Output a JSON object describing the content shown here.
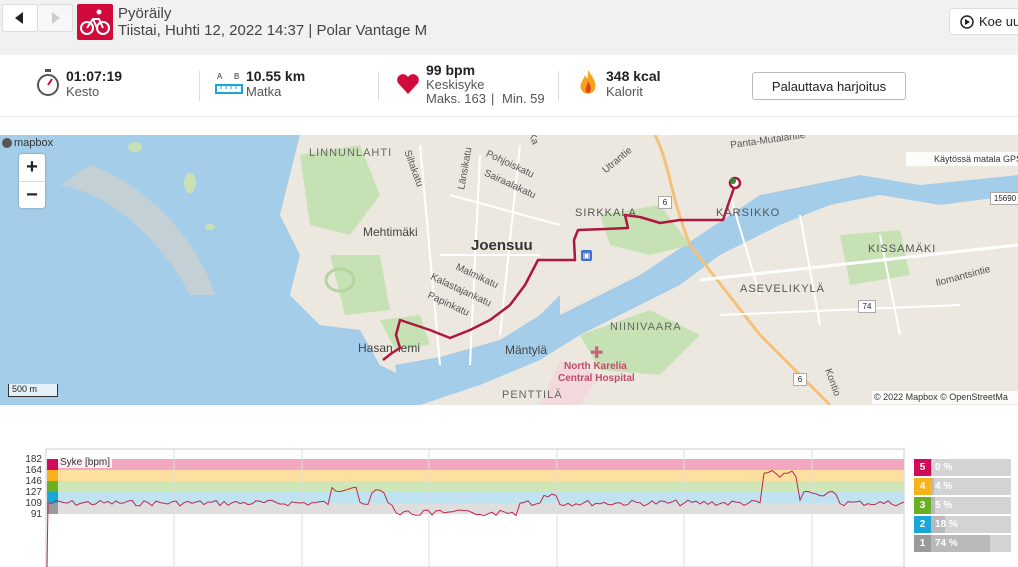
{
  "header": {
    "sport": "Pyöräily",
    "subtitle": "Tiistai, Huhti 12, 2022 14:37 | Polar Vantage M",
    "try_label": "Koe uu"
  },
  "stats": {
    "duration": {
      "value": "01:07:19",
      "label": "Kesto"
    },
    "distance": {
      "value": "10.55 km",
      "label": "Matka"
    },
    "heart_rate": {
      "value": "99 bpm",
      "label": "Keskisyke",
      "max": "Maks. 163",
      "sep": "|",
      "min": "Min. 59"
    },
    "calories": {
      "value": "348 kcal",
      "label": "Kalorit"
    },
    "recovery_button": "Palauttava harjoitus"
  },
  "map": {
    "brand": "mapbox",
    "scale": "500 m",
    "gps_notice": "Käytössä matala GPS",
    "attribution": "© 2022 Mapbox © OpenStreetMa",
    "labels": {
      "linnunlahti": "LINNUNLAHTI",
      "siltakatu": "Siltakatu",
      "lansikatu": "Länsikatu",
      "pohjoiskatu": "Pohjoiskatu",
      "sairaalakatu": "Sairaalakatu",
      "kauppakatu": "Ka",
      "mehtimaki": "Mehtimäki",
      "joensuu": "Joensuu",
      "malmikatu": "Malmikatu",
      "kalastajankatu": "Kalastajankatu",
      "papinkatu": "Papinkatu",
      "hasaniemi_a": "Hasan",
      "hasaniemi_b": "iemi",
      "mantyla": "Mäntylä",
      "penttila": "PENTTILÄ",
      "niinivaara": "NIINIVAARA",
      "hospital_a": "North Karelia",
      "hospital_b": "Central Hospital",
      "sirkkala": "SIRKKALA",
      "karsikko": "KARSIKKO",
      "kissamaki": "KISSAMÄKI",
      "asevelikyla": "ASEVELIKYLÄ",
      "ilomantsintie": "Ilomantsintie",
      "utrantie": "Utrantie",
      "panta": "Panta-Mutalantie",
      "konttorit": "Kontio",
      "r6a": "6",
      "r6b": "6",
      "r74": "74",
      "r15690": "15690"
    }
  },
  "hr_chart": {
    "legend": "Syke [bpm]",
    "ticks": [
      "182",
      "164",
      "146",
      "127",
      "109",
      "91"
    ],
    "zones": [
      {
        "zone": "5",
        "pct": "0 %",
        "color": "#d10a5a",
        "bar": "#f3a7c0"
      },
      {
        "zone": "4",
        "pct": "4 %",
        "color": "#f5b21a",
        "bar": "#fbe0a0"
      },
      {
        "zone": "3",
        "pct": "5 %",
        "color": "#6ab023",
        "bar": "#cfe6b6"
      },
      {
        "zone": "2",
        "pct": "18 %",
        "color": "#1ba6d9",
        "bar": "#bfe3f1"
      },
      {
        "zone": "1",
        "pct": "74 %",
        "color": "#9a9a9a",
        "bar": "#dedede"
      }
    ]
  },
  "colors": {
    "accent": "#d10a3c",
    "water": "#a3cde8",
    "park": "#c6e1b4"
  }
}
